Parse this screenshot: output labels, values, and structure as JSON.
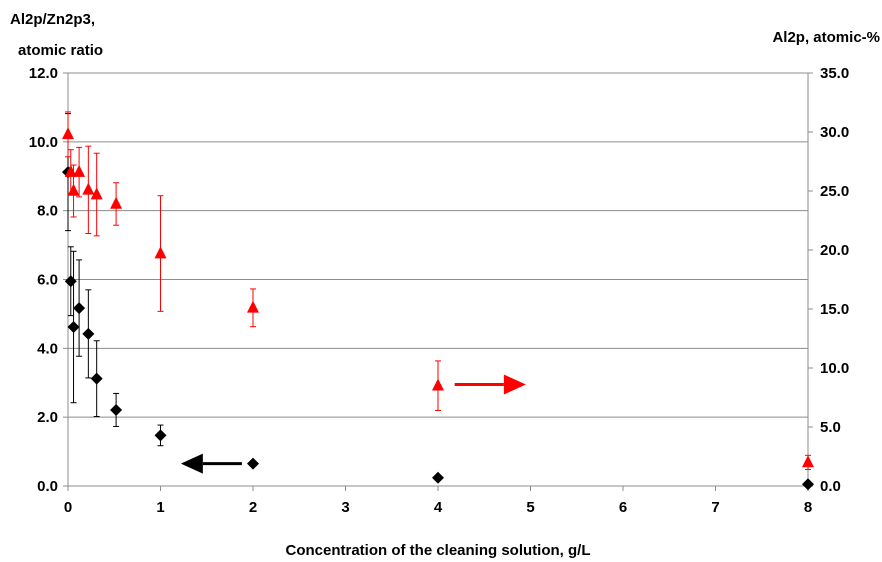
{
  "chart_data": {
    "type": "scatter",
    "xlabel": "Concentration of the cleaning solution, g/L",
    "ylabel_left": [
      "Al2p/Zn2p3,",
      "atomic ratio"
    ],
    "ylabel_right": "Al2p, atomic-%",
    "xlim": [
      0,
      8
    ],
    "ylim_left": [
      0,
      12
    ],
    "ylim_right": [
      0,
      35
    ],
    "x_ticks": [
      "0",
      "1",
      "2",
      "3",
      "4",
      "5",
      "6",
      "7",
      "8"
    ],
    "y_ticks_left": [
      "0.0",
      "2.0",
      "4.0",
      "6.0",
      "8.0",
      "10.0",
      "12.0"
    ],
    "y_ticks_right": [
      "0.0",
      "5.0",
      "10.0",
      "15.0",
      "20.0",
      "25.0",
      "30.0",
      "35.0"
    ],
    "grid": true,
    "series": [
      {
        "axis": "left",
        "marker": "diamond",
        "color": "#000000",
        "points": [
          {
            "x": 0,
            "y": 9.12,
            "err": 1.7
          },
          {
            "x": 0.03,
            "y": 5.95,
            "err": 1.0
          },
          {
            "x": 0.06,
            "y": 4.62,
            "err": 2.2
          },
          {
            "x": 0.12,
            "y": 5.17,
            "err": 1.4
          },
          {
            "x": 0.22,
            "y": 4.42,
            "err": 1.28
          },
          {
            "x": 0.31,
            "y": 3.12,
            "err": 1.1
          },
          {
            "x": 0.52,
            "y": 2.21,
            "err": 0.48
          },
          {
            "x": 1.0,
            "y": 1.47,
            "err": 0.3
          },
          {
            "x": 2.0,
            "y": 0.65,
            "err": 0
          },
          {
            "x": 4.0,
            "y": 0.24,
            "err": 0
          },
          {
            "x": 8.0,
            "y": 0.05,
            "err": 0
          }
        ],
        "arrow": {
          "from": [
            1.88,
            0.65
          ],
          "to": [
            1.22,
            0.65
          ],
          "color": "#000000"
        }
      },
      {
        "axis": "right",
        "marker": "triangle",
        "color": "#ff0000",
        "points": [
          {
            "x": 0,
            "y": 29.8,
            "err": 1.9
          },
          {
            "x": 0.03,
            "y": 26.6,
            "err": 1.9
          },
          {
            "x": 0.06,
            "y": 25.0,
            "err": 2.2
          },
          {
            "x": 0.12,
            "y": 26.6,
            "err": 2.1
          },
          {
            "x": 0.22,
            "y": 25.1,
            "err": 3.7
          },
          {
            "x": 0.31,
            "y": 24.7,
            "err": 3.5
          },
          {
            "x": 0.52,
            "y": 23.9,
            "err": 1.8
          },
          {
            "x": 1.0,
            "y": 19.7,
            "err": 4.9
          },
          {
            "x": 2.0,
            "y": 15.1,
            "err": 1.6
          },
          {
            "x": 4.0,
            "y": 8.5,
            "err": 2.1
          },
          {
            "x": 8.0,
            "y": 2.0,
            "err": 0.6
          }
        ],
        "arrow": {
          "from": [
            4.18,
            8.6
          ],
          "to": [
            4.95,
            8.6
          ],
          "color": "#ff0000"
        }
      }
    ]
  }
}
